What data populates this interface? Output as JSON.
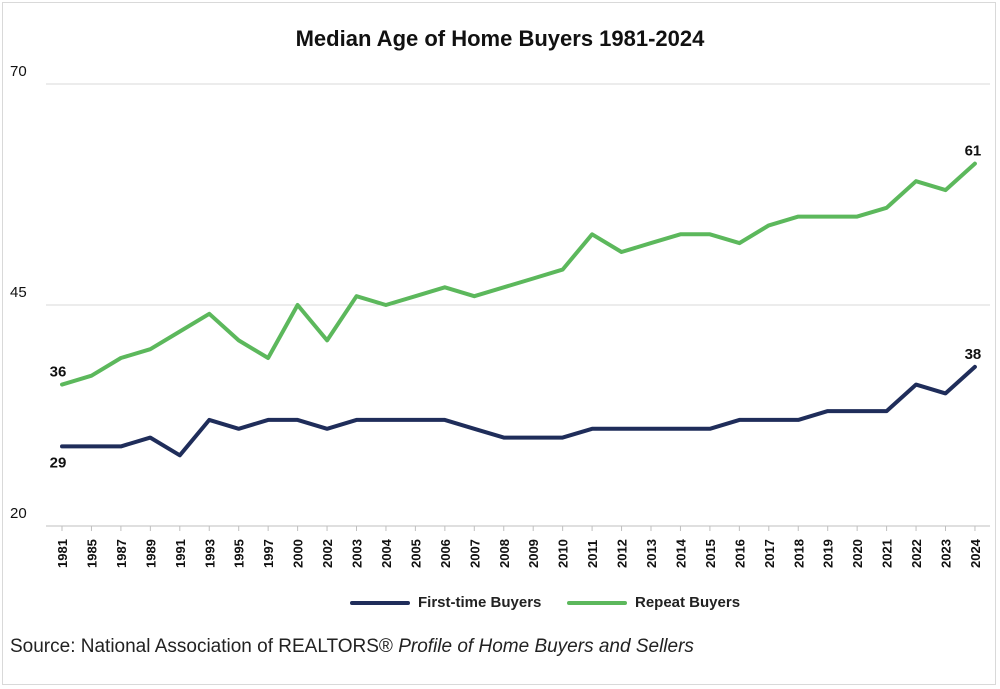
{
  "chart_data": {
    "type": "line",
    "title": "Median Age of Home Buyers 1981-2024",
    "categories": [
      "1981",
      "1985",
      "1987",
      "1989",
      "1991",
      "1993",
      "1995",
      "1997",
      "2000",
      "2002",
      "2003",
      "2004",
      "2005",
      "2006",
      "2007",
      "2008",
      "2009",
      "2010",
      "2011",
      "2012",
      "2013",
      "2014",
      "2015",
      "2016",
      "2017",
      "2018",
      "2019",
      "2020",
      "2021",
      "2022",
      "2023",
      "2024"
    ],
    "y_ticks": [
      "20",
      "45",
      "70"
    ],
    "ylim": [
      20,
      70
    ],
    "grid": true,
    "legend_position": "bottom",
    "series": [
      {
        "name": "First-time Buyers",
        "color": "#1f2d5a",
        "values": [
          29,
          29,
          29,
          30,
          28,
          32,
          31,
          32,
          32,
          31,
          32,
          32,
          32,
          32,
          31,
          30,
          30,
          30,
          31,
          31,
          31,
          31,
          31,
          32,
          32,
          32,
          33,
          33,
          33,
          36,
          35,
          38
        ]
      },
      {
        "name": "Repeat Buyers",
        "color": "#5cb85c",
        "values": [
          36,
          37,
          39,
          40,
          42,
          44,
          41,
          39,
          45,
          41,
          46,
          45,
          46,
          47,
          46,
          47,
          48,
          49,
          53,
          51,
          52,
          53,
          53,
          52,
          54,
          55,
          55,
          55,
          56,
          59,
          58,
          61
        ]
      }
    ],
    "annotations": [
      {
        "series": 0,
        "index": 0,
        "text": "29"
      },
      {
        "series": 1,
        "index": 0,
        "text": "36"
      },
      {
        "series": 0,
        "index": 31,
        "text": "38"
      },
      {
        "series": 1,
        "index": 31,
        "text": "61"
      }
    ]
  },
  "source": {
    "prefix": "Source: National Association of REALTORS®",
    "italic": "Profile of Home Buyers and Sellers"
  }
}
